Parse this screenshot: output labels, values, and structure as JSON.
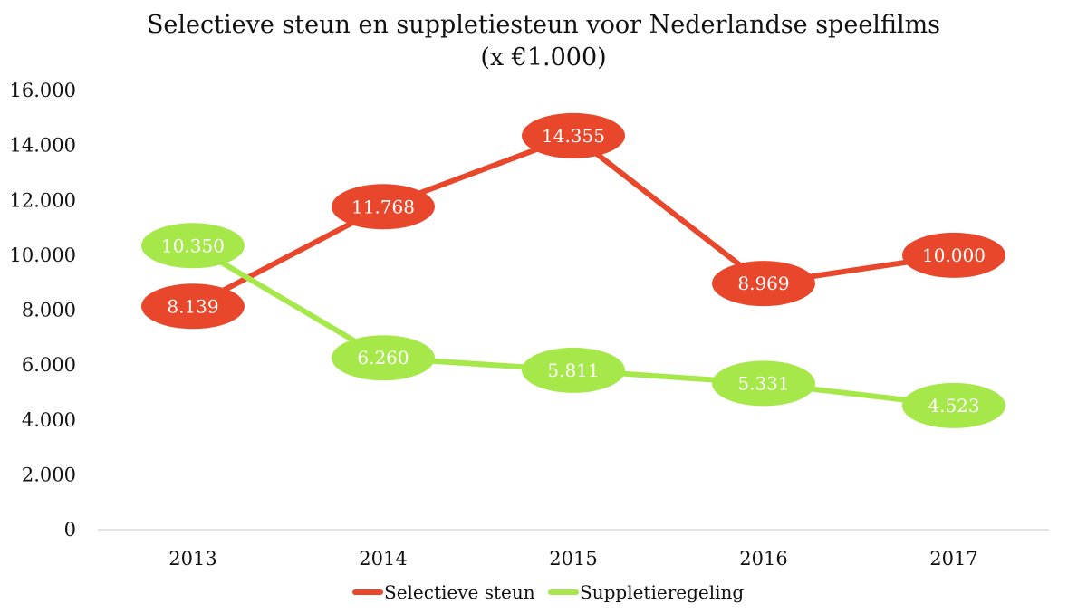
{
  "chart_data": {
    "type": "line",
    "title": "Selectieve steun en suppletiesteun voor Nederlandse speelfilms",
    "subtitle": "(x €1.000)",
    "xlabel": "",
    "ylabel": "",
    "categories": [
      "2013",
      "2014",
      "2015",
      "2016",
      "2017"
    ],
    "ylim": [
      0,
      16000
    ],
    "yticks": [
      0,
      2000,
      4000,
      6000,
      8000,
      10000,
      12000,
      14000,
      16000
    ],
    "ytick_labels": [
      "0",
      "2.000",
      "4.000",
      "6.000",
      "8.000",
      "10.000",
      "12.000",
      "14.000",
      "16.000"
    ],
    "grid": false,
    "legend_position": "bottom",
    "series": [
      {
        "name": "Selectieve steun",
        "color": "#e8472b",
        "values": [
          8139,
          11768,
          14355,
          8969,
          10000
        ],
        "data_labels": [
          "8.139",
          "11.768",
          "14.355",
          "8.969",
          "10.000"
        ]
      },
      {
        "name": "Suppletieregeling",
        "color": "#a6e84a",
        "values": [
          10350,
          6260,
          5811,
          5331,
          4523
        ],
        "data_labels": [
          "10.350",
          "6.260",
          "5.811",
          "5.331",
          "4.523"
        ]
      }
    ]
  }
}
